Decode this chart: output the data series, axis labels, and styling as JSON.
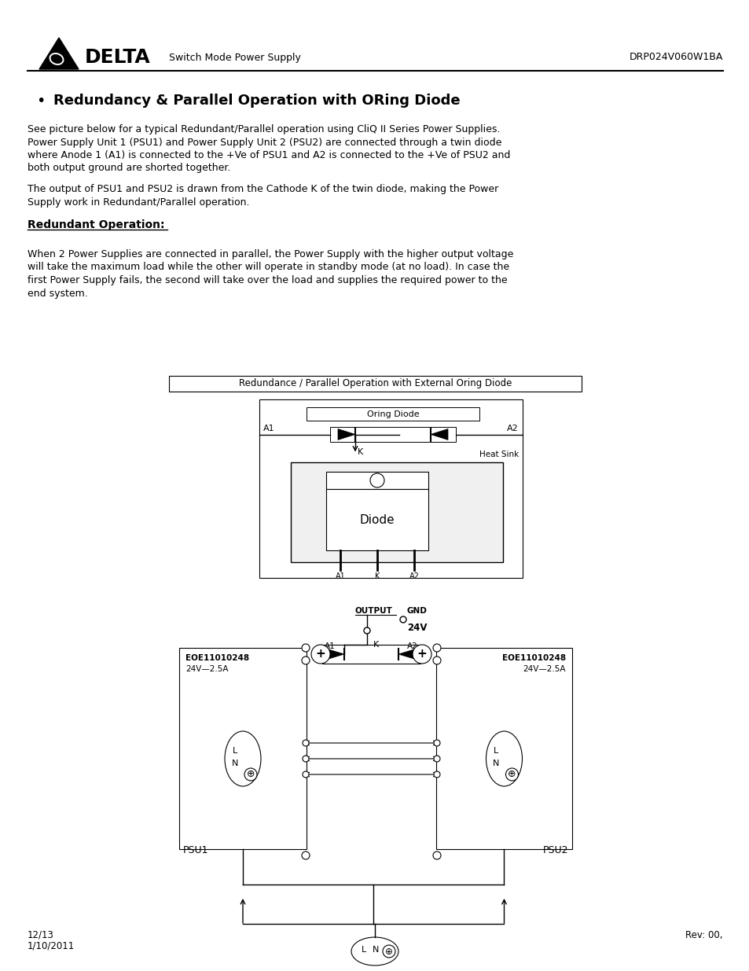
{
  "page_width": 9.54,
  "page_height": 12.35,
  "bg_color": "#ffffff",
  "header_center_text": "Switch Mode Power Supply",
  "header_right_text": "DRP024V060W1BA",
  "footer_left_line1": "12/13",
  "footer_left_line2": "1/10/2011",
  "footer_right_text": "Rev: 00,",
  "bullet_title": "Redundancy & Parallel Operation with ORing Diode",
  "para1_lines": [
    "See picture below for a typical Redundant/Parallel operation using CliQ II Series Power Supplies.",
    "Power Supply Unit 1 (PSU1) and Power Supply Unit 2 (PSU2) are connected through a twin diode",
    "where Anode 1 (A1) is connected to the +Ve of PSU1 and A2 is connected to the +Ve of PSU2 and",
    "both output ground are shorted together."
  ],
  "para2_lines": [
    "The output of PSU1 and PSU2 is drawn from the Cathode K of the twin diode, making the Power",
    "Supply work in Redundant/Parallel operation."
  ],
  "section_title": "Redundant Operation:",
  "para3_lines": [
    "When 2 Power Supplies are connected in parallel, the Power Supply with the higher output voltage",
    "will take the maximum load while the other will operate in standby mode (at no load). In case the",
    "first Power Supply fails, the second will take over the load and supplies the required power to the",
    "end system."
  ],
  "diag1_title": "Redundance / Parallel Operation with External Oring Diode"
}
